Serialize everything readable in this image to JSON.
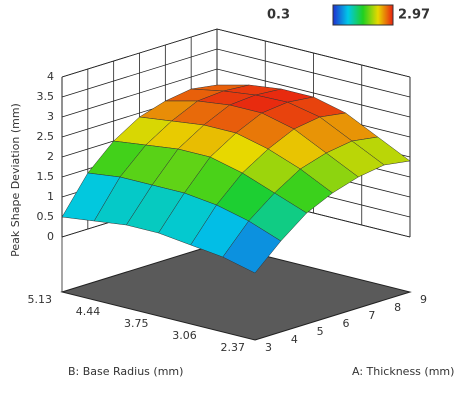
{
  "chart_data": {
    "type": "surface",
    "z_label": "Peak Shape Deviation (mm)",
    "x_label": "A: Thickness (mm)",
    "y_label": "B: Base Radius (mm)",
    "x": [
      3,
      4,
      5,
      6,
      7,
      8,
      9
    ],
    "y": [
      2.37,
      2.83,
      3.29,
      3.75,
      4.21,
      4.67,
      5.13
    ],
    "z": [
      [
        0.3,
        0.9,
        1.4,
        1.7,
        1.9,
        2.0,
        1.9
      ],
      [
        0.5,
        1.2,
        1.7,
        2.1,
        2.3,
        2.4,
        2.3
      ],
      [
        0.6,
        1.4,
        2.0,
        2.4,
        2.7,
        2.8,
        2.7
      ],
      [
        0.7,
        1.5,
        2.2,
        2.6,
        2.9,
        2.97,
        2.9
      ],
      [
        0.7,
        1.5,
        2.2,
        2.6,
        2.9,
        2.95,
        2.9
      ],
      [
        0.6,
        1.5,
        2.1,
        2.5,
        2.8,
        2.85,
        2.8
      ],
      [
        0.5,
        1.4,
        2.0,
        2.4,
        2.6,
        2.7,
        2.6
      ]
    ],
    "xlim": [
      3,
      9
    ],
    "ylim": [
      2.37,
      5.13
    ],
    "zlim": [
      0,
      4
    ],
    "xticks": [
      3,
      4,
      5,
      6,
      7,
      8,
      9
    ],
    "yticks": [
      2.37,
      3.06,
      3.75,
      4.44,
      5.13
    ],
    "zticks": [
      0,
      0.5,
      1,
      1.5,
      2,
      2.5,
      3,
      3.5,
      4
    ],
    "colorbar": {
      "min": 0.3,
      "max": 2.97
    },
    "floor_color": "#5a5a5a"
  }
}
